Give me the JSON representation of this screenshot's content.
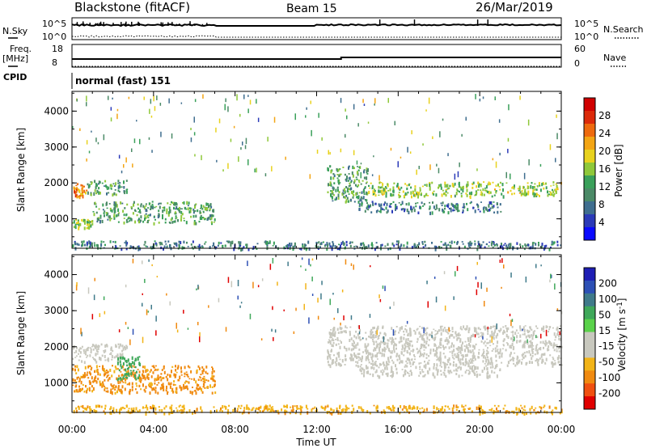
{
  "header": {
    "station": "Blackstone (fitACF)",
    "beam": "Beam 15",
    "date": "26/Mar/2019"
  },
  "top_panels": {
    "nsky_label": "N.Sky",
    "nsearch_label": "N.Search",
    "nsky_ticks": [
      "10^5",
      "10^0"
    ],
    "nsearch_ticks": [
      "10^5",
      "10^0"
    ],
    "freq_label": "Freq.",
    "freq_unit": "[MHz]",
    "freq_ticks": [
      "18",
      "8"
    ],
    "nave_label": "Nave",
    "nave_ticks": [
      "60",
      "0"
    ],
    "cpid_label": "CPID",
    "cpid_value": "normal (fast) 151",
    "freq_change_time_h": 13.2
  },
  "colors": {
    "power_scale": [
      "#0a0aff",
      "#2b3ab8",
      "#3f6e8f",
      "#4b8a67",
      "#3aa05a",
      "#8fc83a",
      "#e8d21e",
      "#f3a514",
      "#ee6a0e",
      "#dc2a0a",
      "#d00000"
    ],
    "velocity_scale": [
      "#e00000",
      "#f05010",
      "#f08a10",
      "#f2b418",
      "#c8c8be",
      "#c8c8be",
      "#5ad24a",
      "#3fa85a",
      "#3f7a8a",
      "#2d50b5",
      "#1e1eb4"
    ]
  },
  "chart_data": [
    {
      "type": "heatmap",
      "title": "Power",
      "xlabel": "Time UT",
      "ylabel": "Slant Range [km]",
      "xlim_hours": [
        0,
        24
      ],
      "x_ticks": [
        "00:00",
        "04:00",
        "08:00",
        "12:00",
        "16:00",
        "20:00",
        "00:00"
      ],
      "ylim_km": [
        180,
        4550
      ],
      "y_ticks": [
        1000,
        2000,
        3000,
        4000
      ],
      "colorbar": {
        "label": "Power [dB]",
        "range": [
          0,
          32
        ],
        "ticks": [
          4,
          8,
          12,
          16,
          20,
          24,
          28
        ]
      },
      "echo_regions": [
        {
          "t_start": 0.0,
          "t_end": 0.7,
          "range_km": [
            1600,
            2000
          ],
          "level": 24
        },
        {
          "t_start": 0.7,
          "t_end": 2.7,
          "range_km": [
            1700,
            2100
          ],
          "level": 12
        },
        {
          "t_start": 0.0,
          "t_end": 1.0,
          "range_km": [
            750,
            1000
          ],
          "level": 16
        },
        {
          "t_start": 1.0,
          "t_end": 7.0,
          "range_km": [
            900,
            1500
          ],
          "level": 12
        },
        {
          "t_start": 12.5,
          "t_end": 14.5,
          "range_km": [
            1500,
            2500
          ],
          "level": 12
        },
        {
          "t_start": 14.5,
          "t_end": 24.0,
          "range_km": [
            1650,
            2050
          ],
          "level": 16
        },
        {
          "t_start": 14.0,
          "t_end": 21.0,
          "range_km": [
            1200,
            1500
          ],
          "level": 8
        },
        {
          "t_start": 0.0,
          "t_end": 24.0,
          "range_km": [
            180,
            400
          ],
          "level": 8
        }
      ]
    },
    {
      "type": "heatmap",
      "title": "Velocity",
      "xlabel": "Time UT",
      "ylabel": "Slant Range [km]",
      "xlim_hours": [
        0,
        24
      ],
      "x_ticks": [
        "00:00",
        "04:00",
        "08:00",
        "12:00",
        "16:00",
        "20:00",
        "00:00"
      ],
      "ylim_km": [
        180,
        4550
      ],
      "y_ticks": [
        1000,
        2000,
        3000,
        4000
      ],
      "colorbar": {
        "label": "Velocity [m s^-1]",
        "ticks": [
          "200",
          "100",
          "50",
          "15",
          "-15",
          "-50",
          "-100",
          "-200"
        ]
      },
      "echo_regions": [
        {
          "t_start": 0.0,
          "t_end": 2.7,
          "range_km": [
            1600,
            2100
          ],
          "velocity": 0
        },
        {
          "t_start": 0.0,
          "t_end": 7.0,
          "range_km": [
            750,
            1500
          ],
          "velocity": -60
        },
        {
          "t_start": 2.2,
          "t_end": 3.3,
          "range_km": [
            1100,
            1750
          ],
          "velocity": 30
        },
        {
          "t_start": 12.5,
          "t_end": 24.0,
          "range_km": [
            1500,
            2600
          ],
          "velocity": 0
        },
        {
          "t_start": 14.0,
          "t_end": 21.0,
          "range_km": [
            1200,
            1500
          ],
          "velocity": 0
        },
        {
          "t_start": 0.0,
          "t_end": 24.0,
          "range_km": [
            180,
            400
          ],
          "velocity": -40
        }
      ]
    }
  ]
}
